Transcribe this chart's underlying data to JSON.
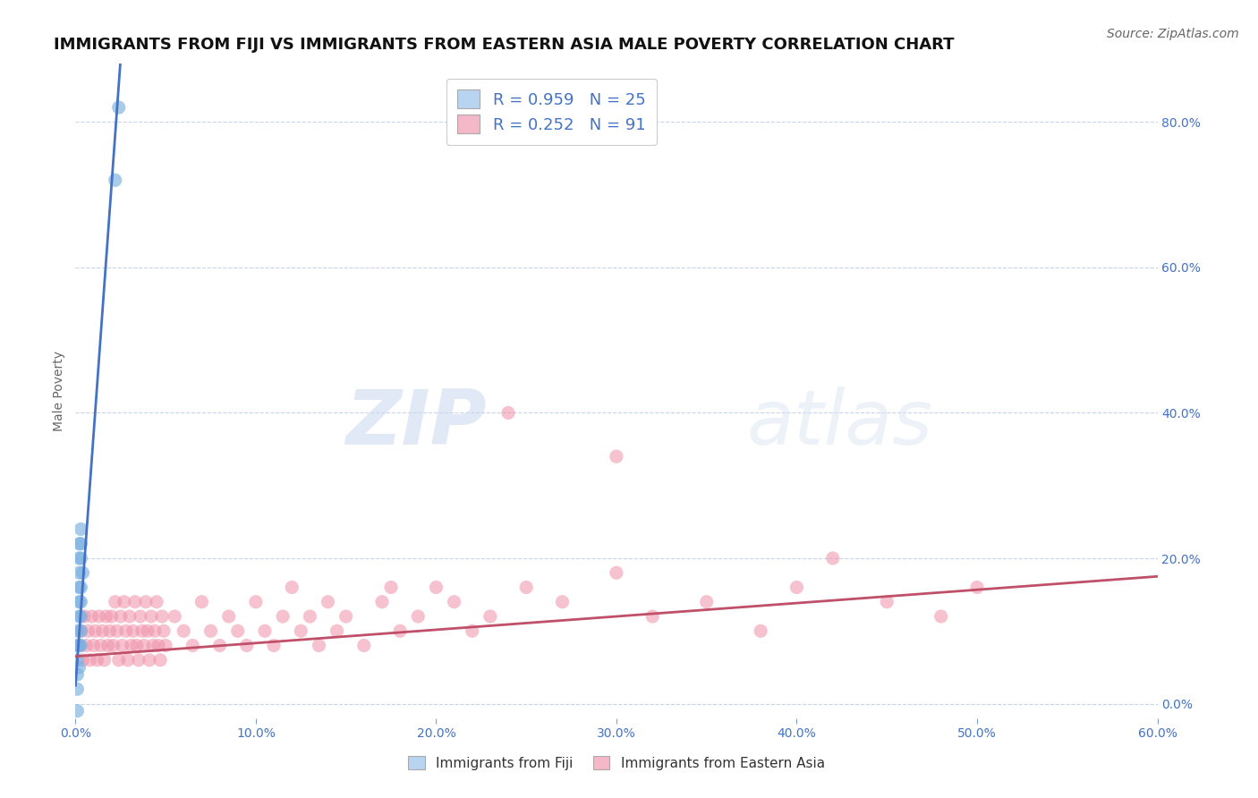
{
  "title": "IMMIGRANTS FROM FIJI VS IMMIGRANTS FROM EASTERN ASIA MALE POVERTY CORRELATION CHART",
  "source": "Source: ZipAtlas.com",
  "xlim": [
    0.0,
    0.6
  ],
  "ylim": [
    -0.02,
    0.88
  ],
  "ylabel": "Male Poverty",
  "legend_items": [
    {
      "label": "R = 0.959   N = 25",
      "color": "#b8d4f0",
      "line_color": "#4472c4"
    },
    {
      "label": "R = 0.252   N = 91",
      "color": "#f4b8c8",
      "line_color": "#c0506a"
    }
  ],
  "fiji_scatter": [
    [
      0.001,
      0.02
    ],
    [
      0.001,
      0.04
    ],
    [
      0.001,
      0.06
    ],
    [
      0.001,
      0.08
    ],
    [
      0.001,
      0.1
    ],
    [
      0.002,
      0.05
    ],
    [
      0.002,
      0.08
    ],
    [
      0.002,
      0.12
    ],
    [
      0.002,
      0.14
    ],
    [
      0.002,
      0.16
    ],
    [
      0.002,
      0.18
    ],
    [
      0.002,
      0.2
    ],
    [
      0.002,
      0.22
    ],
    [
      0.003,
      0.08
    ],
    [
      0.003,
      0.1
    ],
    [
      0.003,
      0.12
    ],
    [
      0.003,
      0.14
    ],
    [
      0.003,
      0.16
    ],
    [
      0.003,
      0.2
    ],
    [
      0.003,
      0.22
    ],
    [
      0.003,
      0.24
    ],
    [
      0.004,
      0.18
    ],
    [
      0.001,
      -0.01
    ],
    [
      0.022,
      0.72
    ],
    [
      0.024,
      0.82
    ]
  ],
  "eastern_asia_scatter": [
    [
      0.002,
      0.08
    ],
    [
      0.003,
      0.1
    ],
    [
      0.004,
      0.06
    ],
    [
      0.005,
      0.12
    ],
    [
      0.006,
      0.08
    ],
    [
      0.007,
      0.1
    ],
    [
      0.008,
      0.06
    ],
    [
      0.009,
      0.12
    ],
    [
      0.01,
      0.08
    ],
    [
      0.011,
      0.1
    ],
    [
      0.012,
      0.06
    ],
    [
      0.013,
      0.12
    ],
    [
      0.014,
      0.08
    ],
    [
      0.015,
      0.1
    ],
    [
      0.016,
      0.06
    ],
    [
      0.017,
      0.12
    ],
    [
      0.018,
      0.08
    ],
    [
      0.019,
      0.1
    ],
    [
      0.02,
      0.12
    ],
    [
      0.021,
      0.08
    ],
    [
      0.022,
      0.14
    ],
    [
      0.023,
      0.1
    ],
    [
      0.024,
      0.06
    ],
    [
      0.025,
      0.12
    ],
    [
      0.026,
      0.08
    ],
    [
      0.027,
      0.14
    ],
    [
      0.028,
      0.1
    ],
    [
      0.029,
      0.06
    ],
    [
      0.03,
      0.12
    ],
    [
      0.031,
      0.08
    ],
    [
      0.032,
      0.1
    ],
    [
      0.033,
      0.14
    ],
    [
      0.034,
      0.08
    ],
    [
      0.035,
      0.06
    ],
    [
      0.036,
      0.12
    ],
    [
      0.037,
      0.1
    ],
    [
      0.038,
      0.08
    ],
    [
      0.039,
      0.14
    ],
    [
      0.04,
      0.1
    ],
    [
      0.041,
      0.06
    ],
    [
      0.042,
      0.12
    ],
    [
      0.043,
      0.08
    ],
    [
      0.044,
      0.1
    ],
    [
      0.045,
      0.14
    ],
    [
      0.046,
      0.08
    ],
    [
      0.047,
      0.06
    ],
    [
      0.048,
      0.12
    ],
    [
      0.049,
      0.1
    ],
    [
      0.05,
      0.08
    ],
    [
      0.055,
      0.12
    ],
    [
      0.06,
      0.1
    ],
    [
      0.065,
      0.08
    ],
    [
      0.07,
      0.14
    ],
    [
      0.075,
      0.1
    ],
    [
      0.08,
      0.08
    ],
    [
      0.085,
      0.12
    ],
    [
      0.09,
      0.1
    ],
    [
      0.095,
      0.08
    ],
    [
      0.1,
      0.14
    ],
    [
      0.105,
      0.1
    ],
    [
      0.11,
      0.08
    ],
    [
      0.115,
      0.12
    ],
    [
      0.12,
      0.16
    ],
    [
      0.125,
      0.1
    ],
    [
      0.13,
      0.12
    ],
    [
      0.135,
      0.08
    ],
    [
      0.14,
      0.14
    ],
    [
      0.145,
      0.1
    ],
    [
      0.15,
      0.12
    ],
    [
      0.16,
      0.08
    ],
    [
      0.17,
      0.14
    ],
    [
      0.175,
      0.16
    ],
    [
      0.18,
      0.1
    ],
    [
      0.19,
      0.12
    ],
    [
      0.2,
      0.16
    ],
    [
      0.21,
      0.14
    ],
    [
      0.22,
      0.1
    ],
    [
      0.23,
      0.12
    ],
    [
      0.25,
      0.16
    ],
    [
      0.27,
      0.14
    ],
    [
      0.3,
      0.18
    ],
    [
      0.32,
      0.12
    ],
    [
      0.35,
      0.14
    ],
    [
      0.38,
      0.1
    ],
    [
      0.4,
      0.16
    ],
    [
      0.42,
      0.2
    ],
    [
      0.45,
      0.14
    ],
    [
      0.48,
      0.12
    ],
    [
      0.5,
      0.16
    ],
    [
      0.3,
      0.34
    ],
    [
      0.24,
      0.4
    ]
  ],
  "fiji_color": "#7ab0e0",
  "eastern_asia_color": "#f090a8",
  "fiji_line_color": "#4472c4",
  "eastern_asia_line_color": "#c0506a",
  "background_color": "#ffffff",
  "grid_color": "#c8d4e8",
  "watermark_zip": "ZIP",
  "watermark_atlas": "atlas",
  "title_fontsize": 13,
  "source_fontsize": 10
}
